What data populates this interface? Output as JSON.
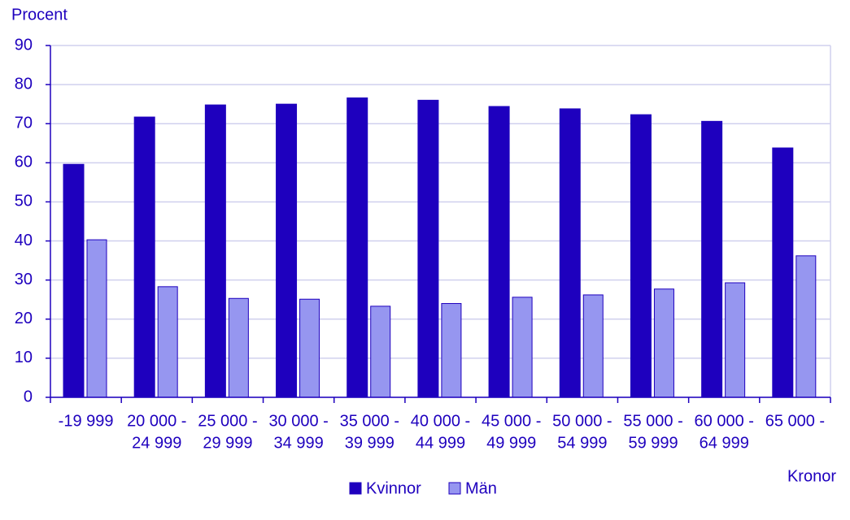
{
  "chart_data": {
    "type": "bar",
    "y_label": "Procent",
    "x_label": "Kronor",
    "categories": [
      [
        "-19 999"
      ],
      [
        "20 000 -",
        "24 999"
      ],
      [
        "25 000 -",
        "29 999"
      ],
      [
        "30 000 -",
        "34 999"
      ],
      [
        "35 000 -",
        "39 999"
      ],
      [
        "40 000 -",
        "44 999"
      ],
      [
        "45 000 -",
        "49 999"
      ],
      [
        "50 000 -",
        "54 999"
      ],
      [
        "55 000 -",
        "59 999"
      ],
      [
        "60 000 -",
        "64 999"
      ],
      [
        "65 000 -"
      ]
    ],
    "series": [
      {
        "name": "Kvinnor",
        "color": "#1e00be",
        "values": [
          59.6,
          71.7,
          74.8,
          75.0,
          76.6,
          76.0,
          74.4,
          73.8,
          72.3,
          70.6,
          63.8
        ]
      },
      {
        "name": "Män",
        "color": "#9696f0",
        "values": [
          40.3,
          28.3,
          25.3,
          25.1,
          23.3,
          24.0,
          25.6,
          26.2,
          27.7,
          29.3,
          36.2
        ]
      }
    ],
    "ylim": [
      0,
      90
    ],
    "yticks": [
      0,
      10,
      20,
      30,
      40,
      50,
      60,
      70,
      80,
      90
    ],
    "grid": true
  }
}
